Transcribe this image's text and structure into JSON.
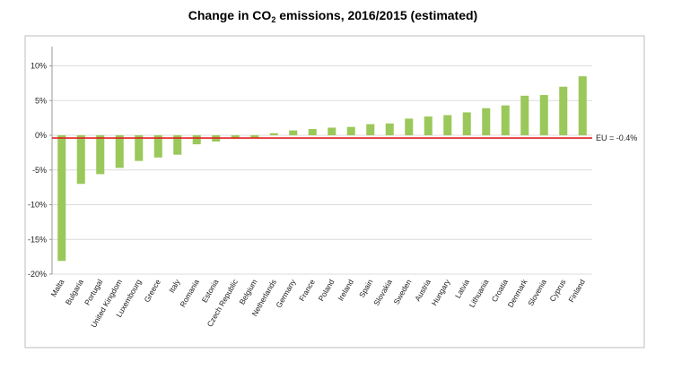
{
  "chart_data": {
    "type": "bar",
    "title": "Change in CO",
    "title_subscript": "2",
    "title_suffix": " emissions, 2016/2015 (estimated)",
    "categories": [
      "Malta",
      "Bulgaria",
      "Portugal",
      "United Kingdom",
      "Luxembourg",
      "Greece",
      "Italy",
      "Romania",
      "Estonia",
      "Czech Republic",
      "Belgium",
      "Netherlands",
      "Germany",
      "France",
      "Poland",
      "Ireland",
      "Spain",
      "Slovakia",
      "Sweden",
      "Austria",
      "Hungary",
      "Latvia",
      "Lithuania",
      "Croatia",
      "Denmark",
      "Slovenia",
      "Cyprus",
      "Finland"
    ],
    "values": [
      -18.1,
      -7.0,
      -5.6,
      -4.7,
      -3.7,
      -3.2,
      -2.8,
      -1.3,
      -0.9,
      -0.5,
      -0.4,
      0.3,
      0.7,
      0.9,
      1.1,
      1.2,
      1.6,
      1.7,
      2.4,
      2.7,
      2.9,
      3.3,
      3.9,
      4.3,
      5.7,
      5.8,
      7.0,
      8.5
    ],
    "ylim": [
      -20,
      12
    ],
    "yticks": [
      -20,
      -15,
      -10,
      -5,
      0,
      5,
      10
    ],
    "ytick_labels": [
      "-20%",
      "-15%",
      "-10%",
      "-5%",
      "0%",
      "5%",
      "10%"
    ],
    "bar_color": "#9bc85a",
    "reference_line": {
      "value": -0.4,
      "label": "EU = -0.4%",
      "color": "#e02020"
    },
    "grid": true,
    "xlabel": "",
    "ylabel": ""
  }
}
